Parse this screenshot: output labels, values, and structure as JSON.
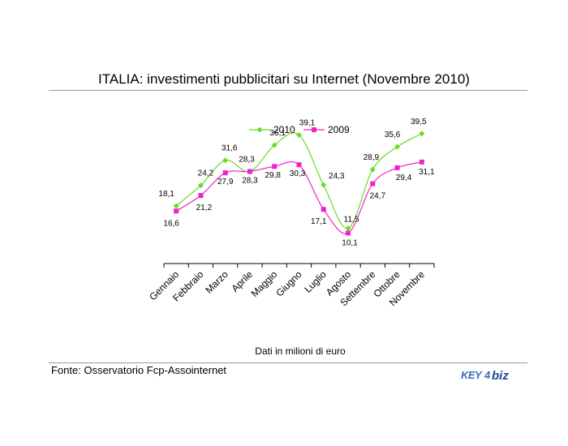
{
  "title": "ITALIA: investimenti pubblicitari su Internet (Novembre 2010)",
  "note": "Dati in milioni di euro",
  "source": "Fonte: Osservatorio Fcp-Assointernet",
  "logo": {
    "text": "KEY4biz",
    "colors": {
      "key": "#3a6fb5",
      "biz": "#1f4d86"
    }
  },
  "chart_data": {
    "type": "line",
    "categories": [
      "Gennaio",
      "Febbraio",
      "Marzo",
      "Aprile",
      "Maggio",
      "Giugno",
      "Luglio",
      "Agosto",
      "Settembre",
      "Ottobre",
      "Novembre"
    ],
    "series": [
      {
        "name": "2010",
        "color": "#66dd22",
        "marker": "diamond",
        "values": [
          18.1,
          24.2,
          31.6,
          28.3,
          36.1,
          39.1,
          24.3,
          11.5,
          28.9,
          35.6,
          39.5
        ],
        "labels": [
          "18,1",
          "24,2",
          "31,6",
          "28,3",
          "36,1",
          "39,1",
          "24,3",
          "11,5",
          "28,9",
          "35,6",
          "39,5"
        ]
      },
      {
        "name": "2009",
        "color": "#ee22cc",
        "marker": "square",
        "values": [
          16.6,
          21.2,
          27.9,
          28.3,
          29.8,
          30.3,
          17.1,
          10.1,
          24.7,
          29.4,
          31.1
        ],
        "labels": [
          "16,6",
          "21,2",
          "27,9",
          "28,3",
          "29,8",
          "30,3",
          "17,1",
          "10,1",
          "24,7",
          "29,4",
          "31,1"
        ]
      }
    ],
    "ylim": [
      0,
      45
    ],
    "grid": false,
    "legend": "top",
    "xlabel": "",
    "ylabel": ""
  }
}
